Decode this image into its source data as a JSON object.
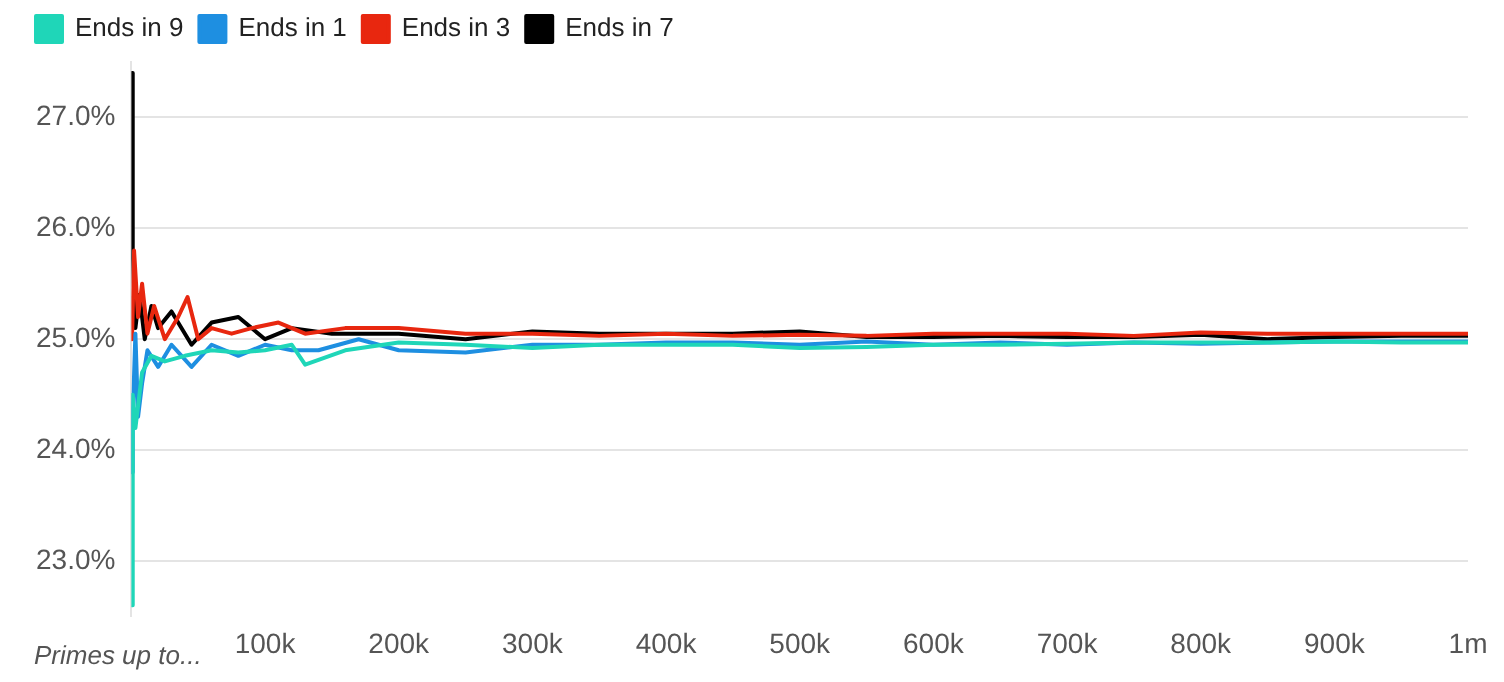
{
  "chart_data": {
    "type": "line",
    "xlabel": "Primes up to...",
    "xlim": [
      0,
      1000000
    ],
    "xticks": [
      {
        "value": 100000,
        "label": "100k"
      },
      {
        "value": 200000,
        "label": "200k"
      },
      {
        "value": 300000,
        "label": "300k"
      },
      {
        "value": 400000,
        "label": "400k"
      },
      {
        "value": 500000,
        "label": "500k"
      },
      {
        "value": 600000,
        "label": "600k"
      },
      {
        "value": 700000,
        "label": "700k"
      },
      {
        "value": 800000,
        "label": "800k"
      },
      {
        "value": 900000,
        "label": "900k"
      },
      {
        "value": 1000000,
        "label": "1m"
      }
    ],
    "yticks": [
      {
        "value": 23,
        "label": "23.0%"
      },
      {
        "value": 24,
        "label": "24.0%"
      },
      {
        "value": 25,
        "label": "25.0%"
      },
      {
        "value": 26,
        "label": "26.0%"
      },
      {
        "value": 27,
        "label": "27.0%"
      }
    ],
    "ylim": [
      22.5,
      27.5
    ],
    "grid": "y",
    "legend": "top left",
    "marker": "none",
    "line_style": "solid",
    "series": [
      {
        "name": "Ends in 9",
        "color": "#1fd6b8",
        "x": [
          500,
          1000,
          3000,
          8000,
          15000,
          25000,
          40000,
          60000,
          80000,
          100000,
          120000,
          130000,
          160000,
          200000,
          250000,
          300000,
          350000,
          400000,
          450000,
          500000,
          550000,
          600000,
          650000,
          700000,
          750000,
          800000,
          850000,
          900000,
          950000,
          1000000
        ],
        "values": [
          22.6,
          24.5,
          24.2,
          24.7,
          24.85,
          24.8,
          24.85,
          24.9,
          24.88,
          24.9,
          24.95,
          24.77,
          24.9,
          24.97,
          24.95,
          24.92,
          24.95,
          24.95,
          24.95,
          24.92,
          24.93,
          24.95,
          24.95,
          24.96,
          24.97,
          24.97,
          24.97,
          24.98,
          24.97,
          24.97
        ]
      },
      {
        "name": "Ends in 1",
        "color": "#1e8fe1",
        "x": [
          500,
          1000,
          3000,
          5000,
          8000,
          12000,
          20000,
          30000,
          45000,
          60000,
          80000,
          100000,
          120000,
          140000,
          170000,
          200000,
          250000,
          300000,
          350000,
          400000,
          450000,
          500000,
          550000,
          600000,
          650000,
          700000,
          750000,
          800000,
          850000,
          900000,
          950000,
          1000000
        ],
        "values": [
          23.8,
          24.3,
          25.05,
          24.3,
          24.6,
          24.9,
          24.75,
          24.95,
          24.75,
          24.95,
          24.85,
          24.95,
          24.9,
          24.9,
          25.0,
          24.9,
          24.88,
          24.95,
          24.95,
          24.97,
          24.97,
          24.95,
          24.98,
          24.95,
          24.97,
          24.95,
          24.97,
          24.96,
          24.97,
          24.98,
          24.98,
          24.98
        ]
      },
      {
        "name": "Ends in 3",
        "color": "#e8270f",
        "x": [
          500,
          2000,
          5000,
          8000,
          12000,
          17000,
          25000,
          35000,
          42000,
          50000,
          60000,
          75000,
          90000,
          110000,
          130000,
          160000,
          200000,
          250000,
          300000,
          350000,
          400000,
          450000,
          500000,
          550000,
          600000,
          650000,
          700000,
          750000,
          800000,
          850000,
          900000,
          950000,
          1000000
        ],
        "values": [
          25.0,
          25.8,
          25.2,
          25.5,
          25.05,
          25.3,
          25.0,
          25.2,
          25.38,
          25.0,
          25.1,
          25.05,
          25.1,
          25.15,
          25.05,
          25.1,
          25.1,
          25.05,
          25.05,
          25.03,
          25.05,
          25.03,
          25.04,
          25.03,
          25.05,
          25.05,
          25.05,
          25.03,
          25.06,
          25.05,
          25.05,
          25.05,
          25.05
        ]
      },
      {
        "name": "Ends in 7",
        "color": "#000000",
        "x": [
          500,
          1000,
          3000,
          6000,
          10000,
          15000,
          20000,
          30000,
          45000,
          60000,
          80000,
          100000,
          120000,
          150000,
          200000,
          250000,
          300000,
          350000,
          400000,
          450000,
          500000,
          550000,
          600000,
          650000,
          700000,
          750000,
          800000,
          850000,
          900000,
          950000,
          1000000
        ],
        "values": [
          27.4,
          25.8,
          25.1,
          25.4,
          25.0,
          25.3,
          25.1,
          25.25,
          24.95,
          25.15,
          25.2,
          25.0,
          25.1,
          25.05,
          25.05,
          25.0,
          25.07,
          25.05,
          25.05,
          25.05,
          25.07,
          25.02,
          25.02,
          25.03,
          25.02,
          25.02,
          25.04,
          25.0,
          25.02,
          25.03,
          25.03
        ]
      }
    ]
  }
}
